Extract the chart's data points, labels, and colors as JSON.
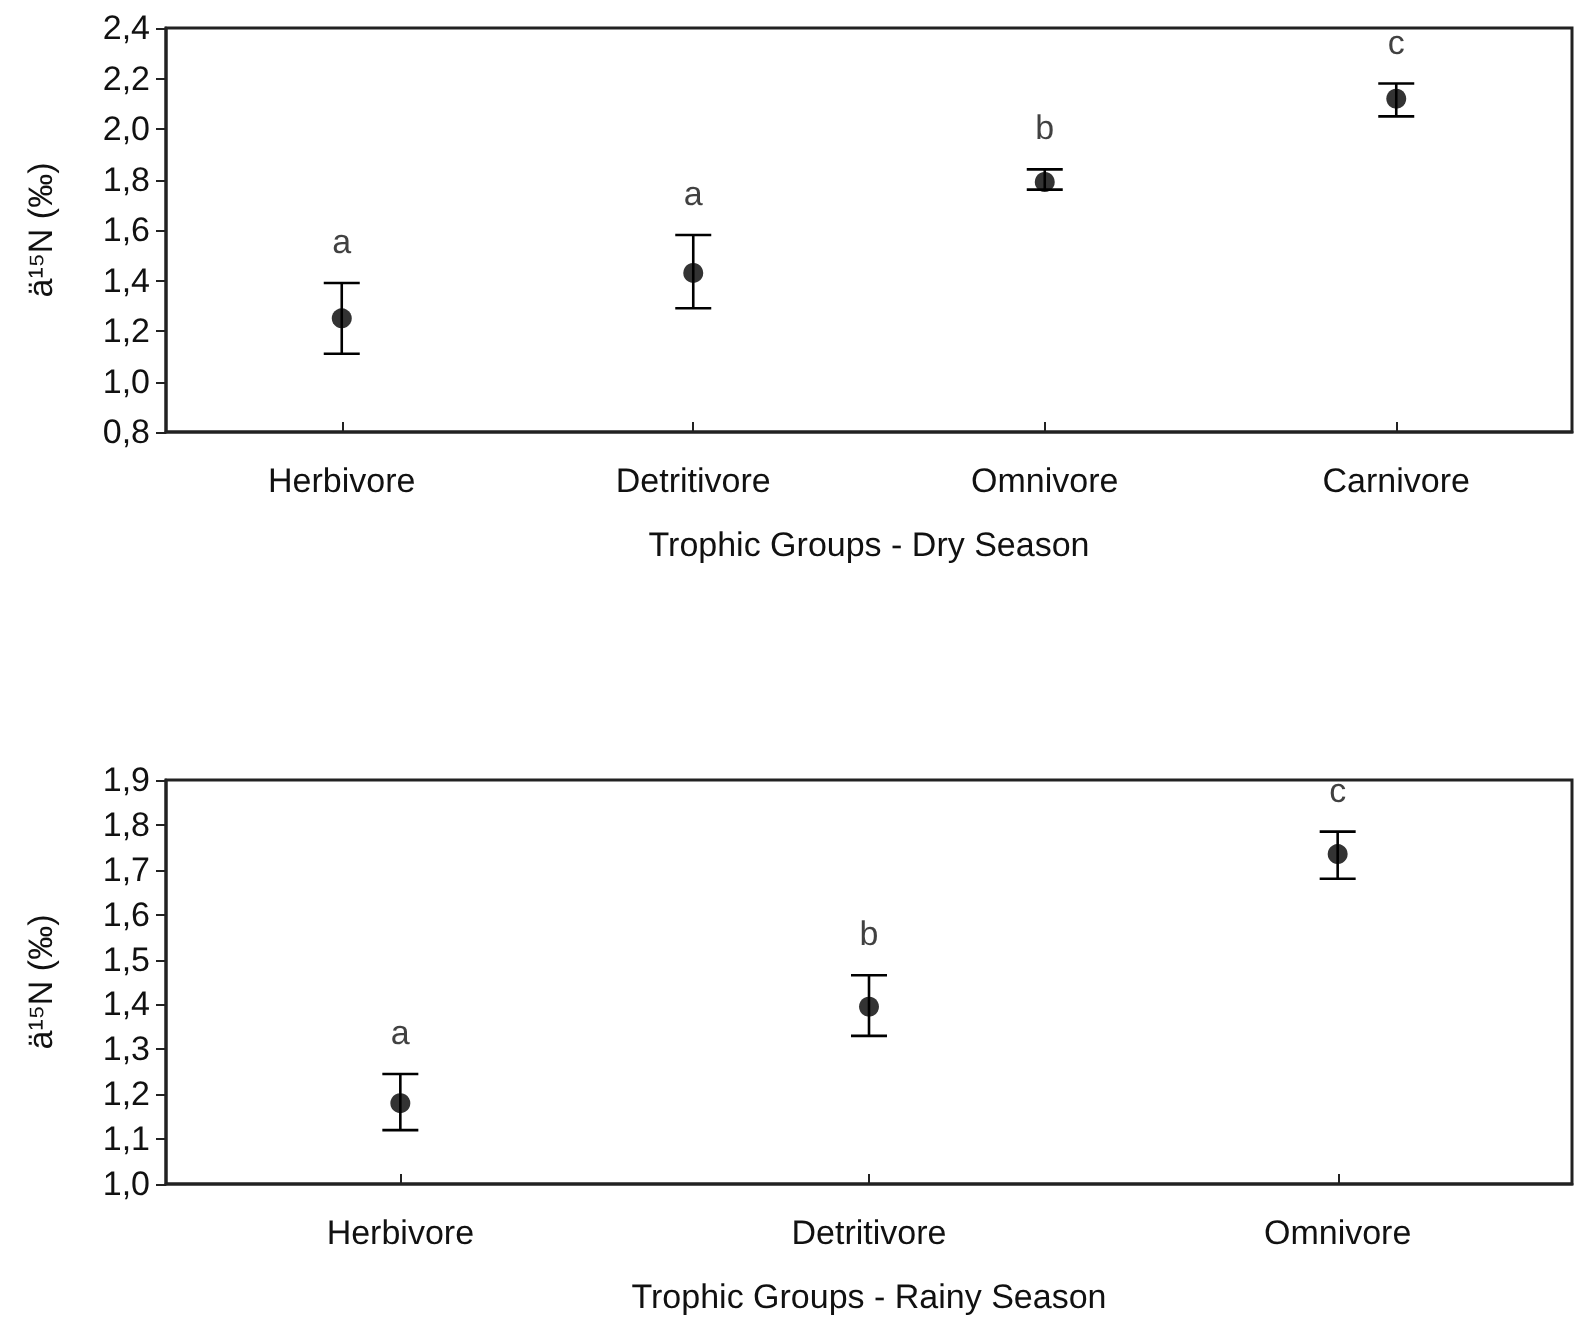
{
  "chart_data": [
    {
      "type": "scatter",
      "xlabel": "Trophic Groups - Dry Season",
      "ylabel": "ä¹⁵N (‰)",
      "categories": [
        "Herbivore",
        "Detritivore",
        "Omnivore",
        "Carnivore"
      ],
      "series": [
        {
          "color": "#000000",
          "values": [
            1.25,
            1.43,
            1.79,
            2.12
          ],
          "errors": [
            [
              1.11,
              1.39
            ],
            [
              1.29,
              1.58
            ],
            [
              1.76,
              1.84
            ],
            [
              2.05,
              2.18
            ]
          ]
        }
      ],
      "ylim": [
        0.8,
        2.4
      ],
      "yticks": [
        {
          "value": 0.8,
          "label": "0,8"
        },
        {
          "value": 1.0,
          "label": "1,0"
        },
        {
          "value": 1.2,
          "label": "1,2"
        },
        {
          "value": 1.4,
          "label": "1,4"
        },
        {
          "value": 1.6,
          "label": "1,6"
        },
        {
          "value": 1.8,
          "label": "1,8"
        },
        {
          "value": 2.0,
          "label": "2,0"
        },
        {
          "value": 2.2,
          "label": "2,2"
        },
        {
          "value": 2.4,
          "label": "2,4"
        }
      ],
      "annotations": [
        "a",
        "a",
        "b",
        "c"
      ],
      "marker": "circle",
      "grid": false
    },
    {
      "type": "scatter",
      "xlabel": "Trophic Groups - Rainy Season",
      "ylabel": "ä¹⁵N (‰)",
      "categories": [
        "Herbivore",
        "Detritivore",
        "Omnivore"
      ],
      "series": [
        {
          "color": "#000000",
          "values": [
            1.18,
            1.395,
            1.735
          ],
          "errors": [
            [
              1.12,
              1.245
            ],
            [
              1.33,
              1.465
            ],
            [
              1.68,
              1.785
            ]
          ]
        }
      ],
      "ylim": [
        1.0,
        1.9
      ],
      "yticks": [
        {
          "value": 1.0,
          "label": "1,0"
        },
        {
          "value": 1.1,
          "label": "1,1"
        },
        {
          "value": 1.2,
          "label": "1,2"
        },
        {
          "value": 1.3,
          "label": "1,3"
        },
        {
          "value": 1.4,
          "label": "1,4"
        },
        {
          "value": 1.5,
          "label": "1,5"
        },
        {
          "value": 1.6,
          "label": "1,6"
        },
        {
          "value": 1.7,
          "label": "1,7"
        },
        {
          "value": 1.8,
          "label": "1,8"
        },
        {
          "value": 1.9,
          "label": "1,9"
        }
      ],
      "annotations": [
        "a",
        "b",
        "c"
      ],
      "marker": "circle",
      "grid": false
    }
  ]
}
